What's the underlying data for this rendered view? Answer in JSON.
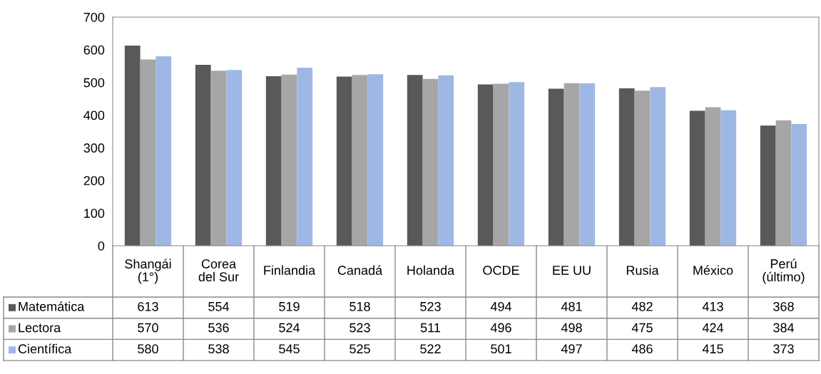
{
  "chart_data": {
    "type": "bar",
    "categories": [
      "Shangái\n(1°)",
      "Corea\ndel Sur",
      "Finlandia",
      "Canadá",
      "Holanda",
      "OCDE",
      "EE UU",
      "Rusia",
      "México",
      "Perú\n(último)"
    ],
    "series": [
      {
        "name": "Matemática",
        "color": "#595959",
        "values": [
          613,
          554,
          519,
          518,
          523,
          494,
          481,
          482,
          413,
          368
        ]
      },
      {
        "name": "Lectora",
        "color": "#a6a6a6",
        "values": [
          570,
          536,
          524,
          523,
          511,
          496,
          498,
          475,
          424,
          384
        ]
      },
      {
        "name": "Científica",
        "color": "#9fb8e3",
        "values": [
          580,
          538,
          545,
          525,
          522,
          501,
          497,
          486,
          415,
          373
        ]
      }
    ],
    "ylim": [
      0,
      700
    ],
    "yticks": [
      0,
      100,
      200,
      300,
      400,
      500,
      600,
      700
    ],
    "data_labels": true,
    "legend": "bottom"
  }
}
